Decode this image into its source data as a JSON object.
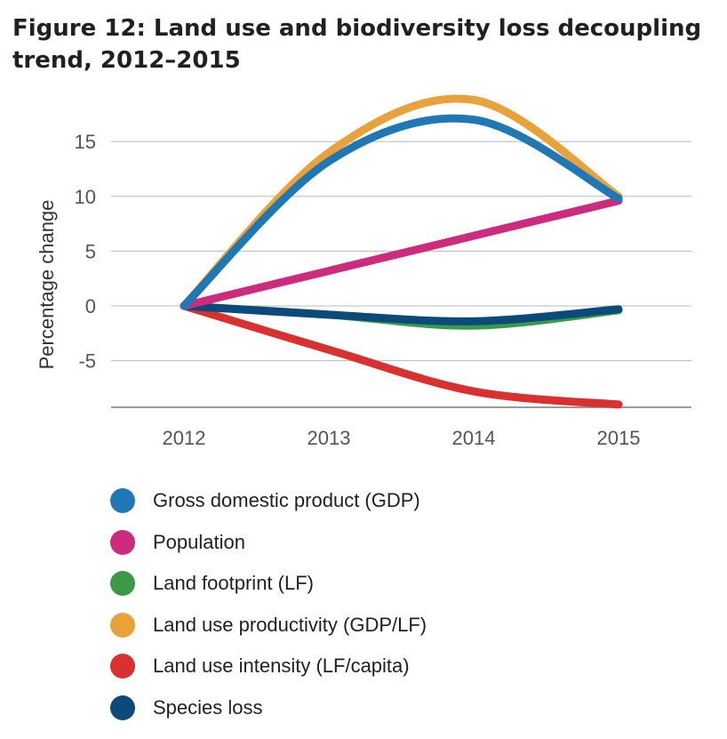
{
  "title": "Figure 12: Land use and biodiversity loss decoupling trend, 2012–2015",
  "chart_data": {
    "type": "line",
    "title": "Figure 12: Land use and biodiversity loss decoupling trend, 2012–2015",
    "xlabel": "",
    "ylabel": "Percentage change",
    "x": [
      2012,
      2013,
      2014,
      2015
    ],
    "ylim": [
      -9,
      18
    ],
    "yticks": [
      15,
      10,
      5,
      0,
      -5
    ],
    "grid": true,
    "legend_position": "bottom",
    "series": [
      {
        "name": "Gross domestic product (GDP)",
        "color": "#1f77b4",
        "values": [
          0,
          13.2,
          17,
          9.8
        ]
      },
      {
        "name": "Population",
        "color": "#cc2b7e",
        "values": [
          0,
          3.2,
          6.4,
          9.6
        ]
      },
      {
        "name": "Land footprint (LF)",
        "color": "#3a9a45",
        "values": [
          0,
          -0.8,
          -1.8,
          -0.4
        ]
      },
      {
        "name": "Land use productivity (GDP/LF)",
        "color": "#e9a23b",
        "values": [
          0,
          14,
          18.8,
          10
        ]
      },
      {
        "name": "Land use intensity (LF/capita)",
        "color": "#d93030",
        "values": [
          0,
          -4,
          -7.8,
          -9
        ]
      },
      {
        "name": "Species loss",
        "color": "#0b4a7a",
        "values": [
          0,
          -0.8,
          -1.4,
          -0.3
        ]
      }
    ]
  }
}
